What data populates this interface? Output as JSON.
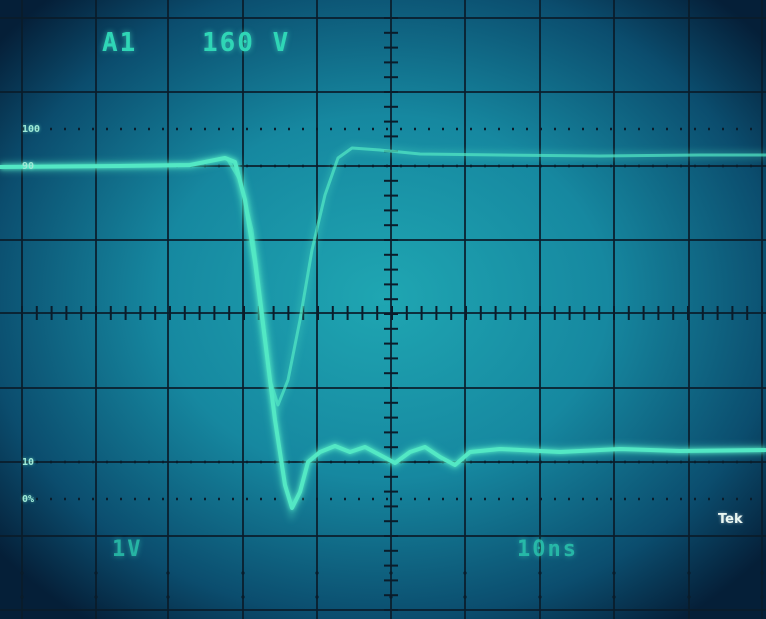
{
  "readout": {
    "channel": "A1",
    "trigger_level": "160 V",
    "volts_per_div": "1V",
    "time_per_div": "10ns"
  },
  "graticule_marks": {
    "upper_100": "100",
    "upper_90": "90",
    "lower_10": "10",
    "lower_0": "0%"
  },
  "brand": "Tek",
  "colors": {
    "screen_center": "#1b97a6",
    "screen_edge": "#062b46",
    "trace": "#53e8c4",
    "grid": "#0a1c2a"
  }
}
